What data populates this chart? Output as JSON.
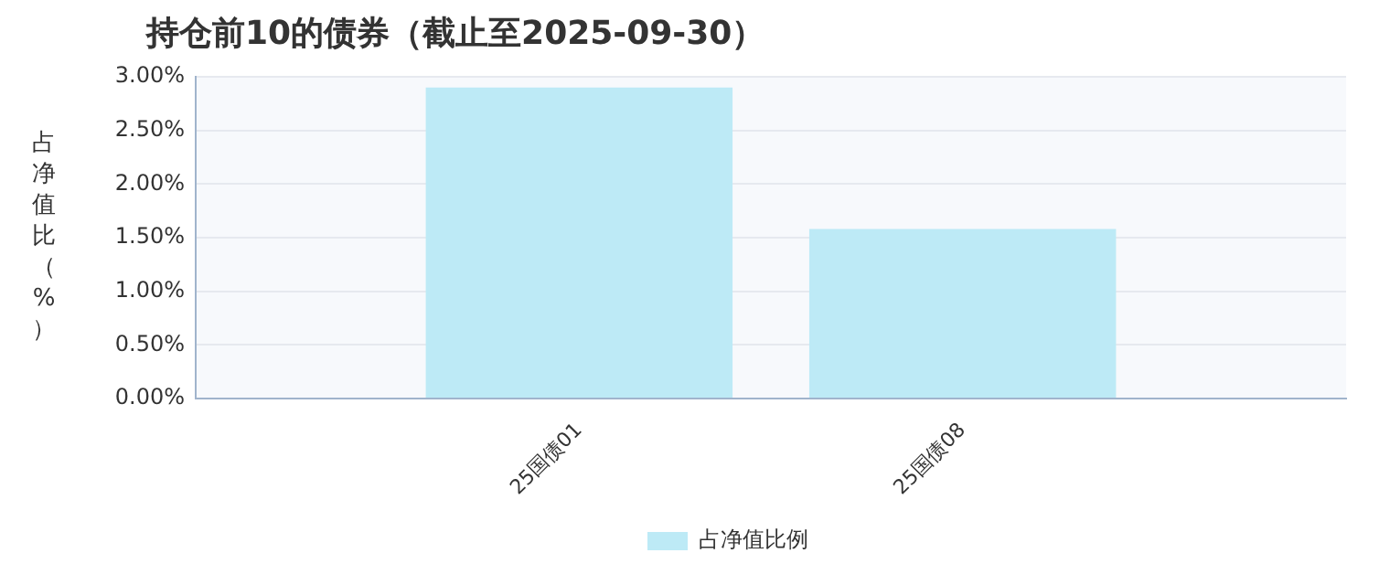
{
  "chart_data": {
    "type": "bar",
    "title": "持仓前10的债券（截止至2025-09-30）",
    "ylabel": "占净值比（%）",
    "categories": [
      "25国债01",
      "25国债08"
    ],
    "series": [
      {
        "name": "占净值比例",
        "color": "#bdeaf6",
        "values": [
          2.9,
          1.58
        ]
      }
    ],
    "ylim": [
      0,
      3
    ],
    "yticks": [
      {
        "value": 0,
        "label": "0.00%"
      },
      {
        "value": 0.5,
        "label": "0.50%"
      },
      {
        "value": 1,
        "label": "1.00%"
      },
      {
        "value": 1.5,
        "label": "1.50%"
      },
      {
        "value": 2,
        "label": "2.00%"
      },
      {
        "value": 2.5,
        "label": "2.50%"
      },
      {
        "value": 3,
        "label": "3.00%"
      }
    ],
    "grid": "y",
    "legend": "bottom"
  }
}
